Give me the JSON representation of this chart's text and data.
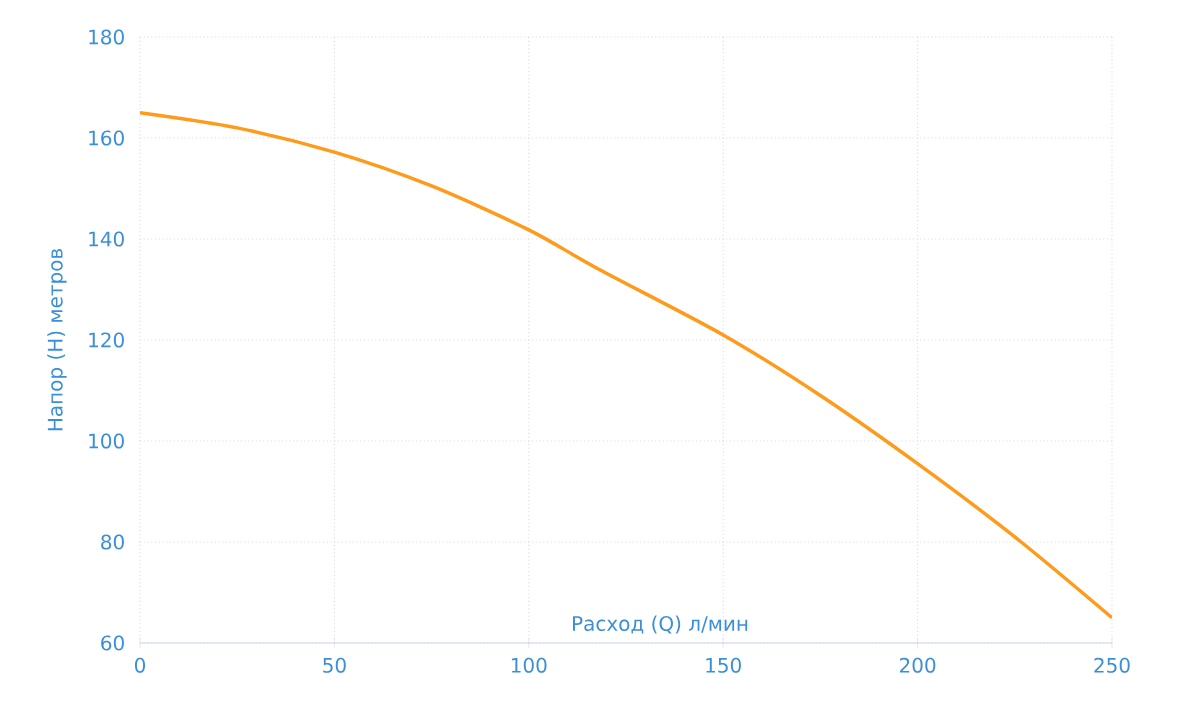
{
  "chart_data": {
    "type": "line",
    "xlabel": "Расход (Q) л/мин",
    "ylabel": "Напор (H) метров",
    "x": [
      0,
      25,
      50,
      75,
      100,
      118,
      150,
      175,
      200,
      225,
      250
    ],
    "series": [
      {
        "color": "#ff9a1a",
        "values": [
          165,
          162,
          157.2,
          150.5,
          141.8,
          134,
          121,
          109,
          95.5,
          81,
          65
        ]
      }
    ],
    "xlim": [
      0,
      250
    ],
    "ylim": [
      60,
      180
    ],
    "xticks": [
      0,
      50,
      100,
      150,
      200,
      250
    ],
    "yticks": [
      60,
      80,
      100,
      120,
      140,
      160,
      180
    ],
    "grid": true
  }
}
